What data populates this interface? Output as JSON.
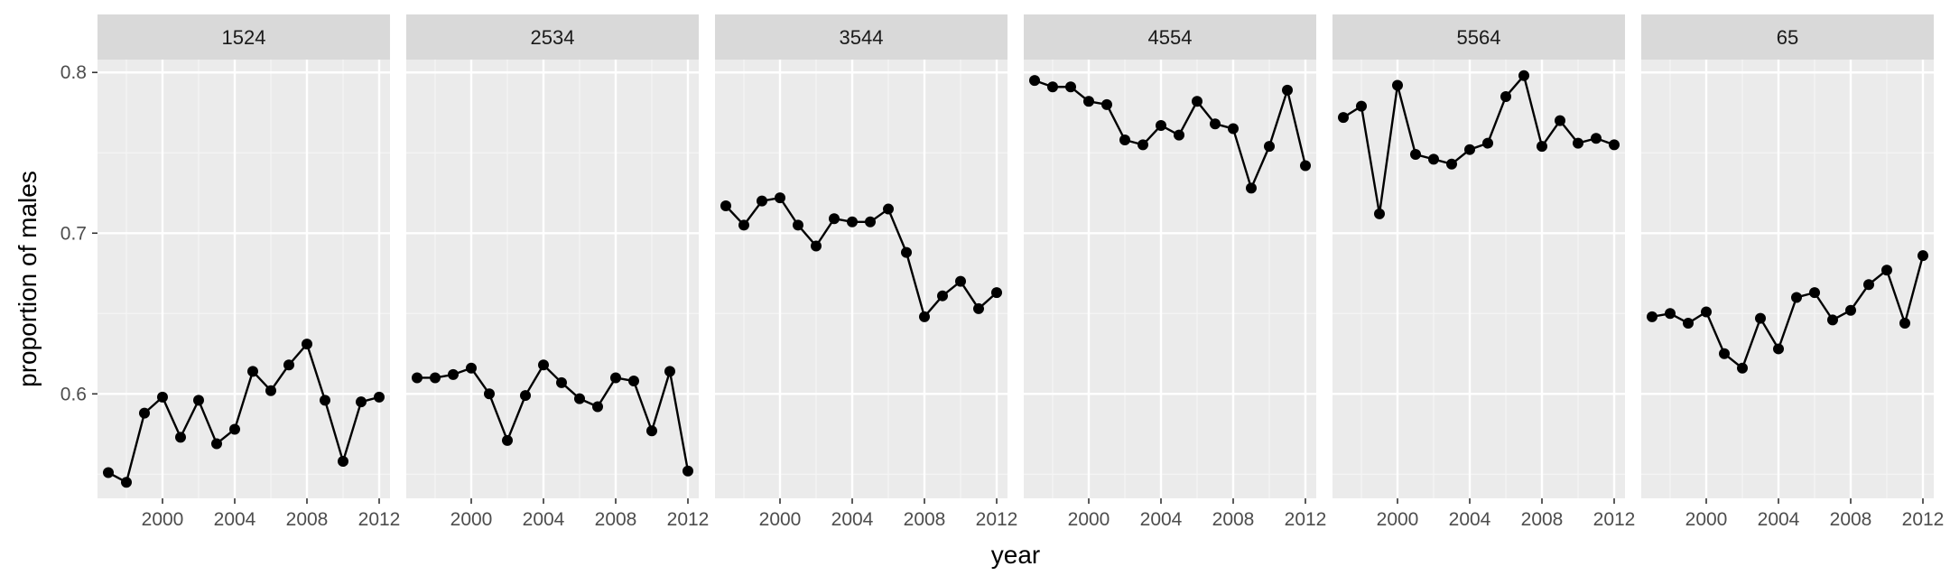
{
  "chart_data": {
    "type": "line",
    "xlabel": "year",
    "ylabel": "proportion of males",
    "xlim": [
      1996.4,
      2012.6
    ],
    "ylim": [
      0.535,
      0.808
    ],
    "x_ticks": [
      2000,
      2004,
      2008,
      2012
    ],
    "x_tick_labels": [
      "2000",
      "2004",
      "2008",
      "2012"
    ],
    "y_ticks": [
      0.6,
      0.7,
      0.8
    ],
    "y_tick_labels": [
      "0.6",
      "0.7",
      "0.8"
    ],
    "x": [
      1997,
      1998,
      1999,
      2000,
      2001,
      2002,
      2003,
      2004,
      2005,
      2006,
      2007,
      2008,
      2009,
      2010,
      2011,
      2012
    ],
    "grid": true,
    "legend": "none",
    "panels": [
      {
        "label": "1524",
        "values": [
          0.551,
          0.545,
          0.588,
          0.598,
          0.573,
          0.596,
          0.569,
          0.578,
          0.614,
          0.602,
          0.618,
          0.631,
          0.596,
          0.558,
          0.595,
          0.598
        ]
      },
      {
        "label": "2534",
        "values": [
          0.61,
          0.61,
          0.612,
          0.616,
          0.6,
          0.571,
          0.599,
          0.618,
          0.607,
          0.597,
          0.592,
          0.61,
          0.608,
          0.577,
          0.614,
          0.552
        ]
      },
      {
        "label": "3544",
        "values": [
          0.717,
          0.705,
          0.72,
          0.722,
          0.705,
          0.692,
          0.709,
          0.707,
          0.707,
          0.715,
          0.688,
          0.648,
          0.661,
          0.67,
          0.653,
          0.663
        ]
      },
      {
        "label": "4554",
        "values": [
          0.795,
          0.791,
          0.791,
          0.782,
          0.78,
          0.758,
          0.755,
          0.767,
          0.761,
          0.782,
          0.768,
          0.765,
          0.728,
          0.754,
          0.789,
          0.742
        ]
      },
      {
        "label": "5564",
        "values": [
          0.772,
          0.779,
          0.712,
          0.792,
          0.749,
          0.746,
          0.743,
          0.752,
          0.756,
          0.785,
          0.798,
          0.754,
          0.77,
          0.756,
          0.759,
          0.755
        ]
      },
      {
        "label": "65",
        "values": [
          0.648,
          0.65,
          0.644,
          0.651,
          0.625,
          0.616,
          0.647,
          0.628,
          0.66,
          0.663,
          0.646,
          0.652,
          0.668,
          0.677,
          0.644,
          0.686
        ]
      }
    ]
  }
}
